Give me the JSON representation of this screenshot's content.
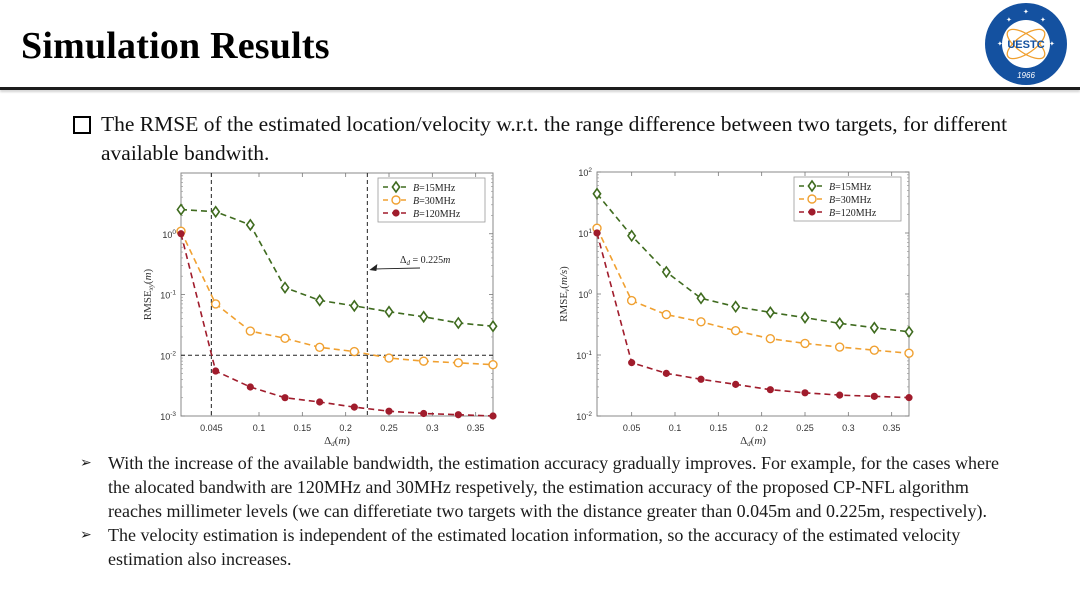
{
  "slide": {
    "title": "Simulation Results",
    "logo": {
      "text": "UESTC",
      "year": "1966",
      "ring_color": "#1451a0",
      "accent_color": "#f0a030"
    },
    "intro": "The RMSE of the estimated location/velocity w.r.t. the range difference between two targets, for different available bandwith.",
    "bullets": [
      "With the increase of the available bandwidth, the estimation accuracy gradually improves. For example, for the cases where the alocated bandwith are 120MHz and 30MHz respetively, the estimation accuracy of the proposed CP-NFL algorithm reaches millimeter levels (we can differetiate two targets with the distance greater than 0.045m and 0.225m, respectively).",
      "The velocity estimation is independent of the estimated location information, so the accuracy of the estimated velocity estimation also increases."
    ],
    "bullet_glyph": "➢",
    "intro_glyph": "checkbox-square"
  },
  "chart_data": [
    {
      "type": "line",
      "title": "",
      "xlabel": "Δd(m)",
      "ylabel": "RMSExy(m)",
      "yscale": "log",
      "xlim": [
        0.01,
        0.37
      ],
      "ylim": [
        0.001,
        10
      ],
      "xticks": [
        0.045,
        0.1,
        0.15,
        0.2,
        0.25,
        0.3,
        0.35
      ],
      "xtick_labels": [
        "0.045",
        "0.1",
        "0.15",
        "0.2",
        "0.25",
        "0.3",
        "0.35"
      ],
      "yticks": [
        0.001,
        0.01,
        0.1,
        1
      ],
      "ytick_labels": [
        "10-3",
        "10-2",
        "10-1",
        "100"
      ],
      "x": [
        0.01,
        0.05,
        0.09,
        0.13,
        0.17,
        0.21,
        0.25,
        0.29,
        0.33,
        0.37
      ],
      "series": [
        {
          "name": "B=15MHz",
          "color": "#3f6b1f",
          "marker": "diamond",
          "values": [
            2.5,
            2.3,
            1.4,
            0.13,
            0.08,
            0.065,
            0.052,
            0.043,
            0.034,
            0.03
          ]
        },
        {
          "name": "B=30MHz",
          "color": "#f0a030",
          "marker": "circle-open",
          "values": [
            1.1,
            0.07,
            0.025,
            0.019,
            0.0135,
            0.0115,
            0.009,
            0.008,
            0.0075,
            0.007
          ]
        },
        {
          "name": "B=120MHz",
          "color": "#a01c2c",
          "marker": "circle-filled",
          "values": [
            1.0,
            0.0055,
            0.003,
            0.002,
            0.0017,
            0.0014,
            0.0012,
            0.0011,
            0.00105,
            0.001
          ]
        }
      ],
      "reference_lines": {
        "vertical": [
          0.045,
          0.225
        ],
        "horizontal": [
          0.01
        ]
      },
      "annotation": {
        "text": "Δd = 0.225m",
        "points_to_x": 0.225
      },
      "legend": "top-right",
      "grid": false
    },
    {
      "type": "line",
      "title": "",
      "xlabel": "Δd(m)",
      "ylabel": "RMSEv(m/s)",
      "yscale": "log",
      "xlim": [
        0.01,
        0.37
      ],
      "ylim": [
        0.01,
        100
      ],
      "xticks": [
        0.05,
        0.1,
        0.15,
        0.2,
        0.25,
        0.3,
        0.35
      ],
      "xtick_labels": [
        "0.05",
        "0.1",
        "0.15",
        "0.2",
        "0.25",
        "0.3",
        "0.35"
      ],
      "yticks": [
        0.01,
        0.1,
        1,
        10,
        100
      ],
      "ytick_labels": [
        "10-2",
        "10-1",
        "100",
        "101",
        "102"
      ],
      "x": [
        0.01,
        0.05,
        0.09,
        0.13,
        0.17,
        0.21,
        0.25,
        0.29,
        0.33,
        0.37
      ],
      "series": [
        {
          "name": "B=15MHz",
          "color": "#3f6b1f",
          "marker": "diamond",
          "values": [
            44,
            9,
            2.3,
            0.85,
            0.62,
            0.5,
            0.41,
            0.33,
            0.28,
            0.24
          ]
        },
        {
          "name": "B=30MHz",
          "color": "#f0a030",
          "marker": "circle-open",
          "values": [
            12,
            0.78,
            0.46,
            0.35,
            0.25,
            0.185,
            0.155,
            0.135,
            0.12,
            0.107
          ]
        },
        {
          "name": "B=120MHz",
          "color": "#a01c2c",
          "marker": "circle-filled",
          "values": [
            10,
            0.075,
            0.05,
            0.04,
            0.033,
            0.027,
            0.024,
            0.022,
            0.021,
            0.02
          ]
        }
      ],
      "legend": "top-right",
      "grid": false
    }
  ]
}
